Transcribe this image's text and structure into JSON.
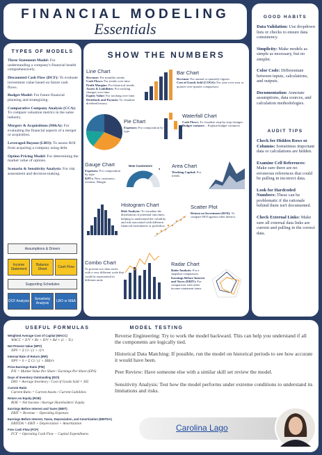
{
  "header": {
    "title": "FINANCIAL MODELING",
    "subtitle": "Essentials"
  },
  "types_of_models": {
    "heading": "TYPES OF MODELS",
    "items": [
      {
        "lead": "Three Statement Model:",
        "text": " For understanding a company's financial health comprehensively."
      },
      {
        "lead": "Discounted Cash Flow (DCF):",
        "text": " To evaluate investment value based on future cash flows."
      },
      {
        "lead": "Budget Model:",
        "text": " For future financial planning and strategizing."
      },
      {
        "lead": "Comparative Company Analysis (CCA):",
        "text": " To compare valuation metrics in the same industry."
      },
      {
        "lead": "Mergers & Acquisitions (M&A):",
        "text": " For evaluating the financial aspects of a merger or acquisition."
      },
      {
        "lead": "Leveraged Buyout (LBO):",
        "text": " To assess ROI from acquiring a company using debt."
      },
      {
        "lead": "Option Pricing Model:",
        "text": " For determining the market value of options."
      },
      {
        "lead": "Scenario & Sensitivity Analysis:",
        "text": " For risk assessment and decision-making."
      }
    ]
  },
  "model_flow": {
    "top": "Assumptions & Drivers",
    "statements": [
      "Income Statement",
      "Balance Sheet",
      "Cash Flow"
    ],
    "middle": "Supporting Schedules",
    "outputs": [
      "DCF Analysis",
      "Sensitivity Analysis",
      "LBO or M&A"
    ]
  },
  "show_the_numbers": {
    "heading": "SHOW THE NUMBERS",
    "gauge_label": "New Customers",
    "charts": [
      {
        "title": "Line Chart",
        "items": [
          {
            "lead": "Revenue:",
            "text": " For monthly trends."
          },
          {
            "lead": "Cash Flows:",
            "text": " For trends over time."
          },
          {
            "lead": "Profit Margins:",
            "text": " For historical trends."
          },
          {
            "lead": "Assets & Liabilities:",
            "text": " For tracking changes over time."
          },
          {
            "lead": "Equity Value:",
            "text": " For tracking over time."
          },
          {
            "lead": "Dividends and Payouts:",
            "text": " To visualize dividend history."
          }
        ]
      },
      {
        "title": "Bar Chart",
        "items": [
          {
            "lead": "Revenue:",
            "text": " For annual or quarterly figures."
          },
          {
            "lead": "Cost of Goods Sold (COGS):",
            "text": " For year-over-year or quarter-over-quarter comparison."
          }
        ]
      },
      {
        "title": "Pie Chart",
        "items": [
          {
            "lead": "Expenses:",
            "text": " For composition by type."
          }
        ]
      },
      {
        "title": "Waterfall Chart",
        "items": [
          {
            "lead": "Cash Flows:",
            "text": " To visualize step-by-step changes."
          },
          {
            "lead": "Budget variance",
            "text": " – Explain budget variances"
          }
        ]
      },
      {
        "title": "Gauge Chart",
        "items": [
          {
            "lead": "Expenses:",
            "text": " For composition by type."
          },
          {
            "lead": "KPI's:",
            "text": " New customers; revenue, Margin"
          }
        ]
      },
      {
        "title": "Area Chart",
        "items": [
          {
            "lead": "Working Capital:",
            "text": " For trends."
          }
        ]
      },
      {
        "title": "Histogram Chart",
        "items": [
          {
            "lead": "Risk Analysis:",
            "text": " To visualize the distribution of potential outcomes, helping to understand the volatility and risk associated with different financial instruments or portfolios."
          }
        ]
      },
      {
        "title": "Scatter Plot",
        "items": [
          {
            "lead": "Return on Investment (ROI):",
            "text": " To compare ROI against other metrics."
          }
        ]
      },
      {
        "title": "Combo Chart",
        "items": [
          {
            "text": "To present two data series with a very different scale that could be represented in different units"
          }
        ]
      },
      {
        "title": "Radar Chart",
        "items": [
          {
            "lead": "Ratio Analysis:",
            "text": " For a snapshot comparison."
          },
          {
            "lead": "Earnings Before Interest and Taxes (EBIT):",
            "text": " For comparison with other income statement items"
          }
        ]
      }
    ]
  },
  "good_habits": {
    "heading": "GOOD HABITS",
    "items": [
      {
        "lead": "Data Validation:",
        "text": " Use dropdown lists or checks to ensure data consistency."
      },
      {
        "lead": "Simplicity:",
        "text": " Make models as simple as necessary, but no simpler."
      },
      {
        "lead": "Color Code:",
        "text": " Differentiate between inputs, calculations, and outputs."
      },
      {
        "lead": "Documentation:",
        "text": " Annotate assumptions, data sources, and calculation methodologies."
      }
    ]
  },
  "audit_tips": {
    "heading": "AUDIT TIPS",
    "items": [
      {
        "lead": "Check for Hidden Rows or Columns:",
        "text": " Sometimes important data or calculations are hidden."
      },
      {
        "lead": "Examine Cell References:",
        "text": " Make sure there are no erroneous references that could be pulling in incorrect data."
      },
      {
        "lead": "Look for Hardcoded Numbers:",
        "text": " These can be problematic if the rationale behind them isn't documented."
      },
      {
        "lead": "Check External Links:",
        "text": " Make sure all external data links are current and pulling in the correct data."
      }
    ]
  },
  "useful_formulas": {
    "heading": "USEFUL FORMULAS",
    "items": [
      {
        "name": "Weighted Average Cost of Capital (WACC)",
        "formula": "WACC = E/V × Re + D/V × Rd × (1 − Tc)"
      },
      {
        "name": "Net Present Value (NPV)",
        "formula": "NPV = Σ Ct / (1 + r)^t"
      },
      {
        "name": "Internal Rate of Return (IRR)",
        "formula": "NPV = 0 = Σ Ct / (1 + IRR)^t"
      },
      {
        "name": "Price-Earnings Ratio (P/E)",
        "formula": "P/E = Market Value Per Share / Earnings Per Share (EPS)"
      },
      {
        "name": "Days of Inventory Outstanding (DIO)",
        "formula": "DIO = Average Inventory / Cost of Goods Sold × 365"
      },
      {
        "name": "Current Ratio",
        "formula": "Current Ratio = Current Assets / Current Liabilities"
      },
      {
        "name": "Return on Equity (ROE)",
        "formula": "ROE = Net Income / Average Shareholders' Equity"
      },
      {
        "name": "Earnings Before Interest and Taxes (EBIT)",
        "formula": "EBIT = Revenue − Operating Expenses"
      },
      {
        "name": "Earnings Before Interest, Taxes, Depreciation, and Amortization (EBITDA)",
        "formula": "EBITDA = EBIT + Depreciation + Amortization"
      },
      {
        "name": "Free Cash Flow (FCF)",
        "formula": "FCF = Operating Cash Flow − Capital Expenditures"
      }
    ]
  },
  "model_testing": {
    "heading": "MODEL TESTING",
    "paragraphs": [
      "Reverse Engineering: Try to work the model backward. This can help you understand if all the components are logically tied.",
      "Historical Data Matching: If possible, run the model on historical periods to see how accurate it would have been.",
      "Peer Review: Have someone else with a similar skill set review the model.",
      "Sensitivity Analysis: Test how the model performs under extreme conditions to understand its limitations and risks."
    ]
  },
  "author": "Carolina Lago"
}
